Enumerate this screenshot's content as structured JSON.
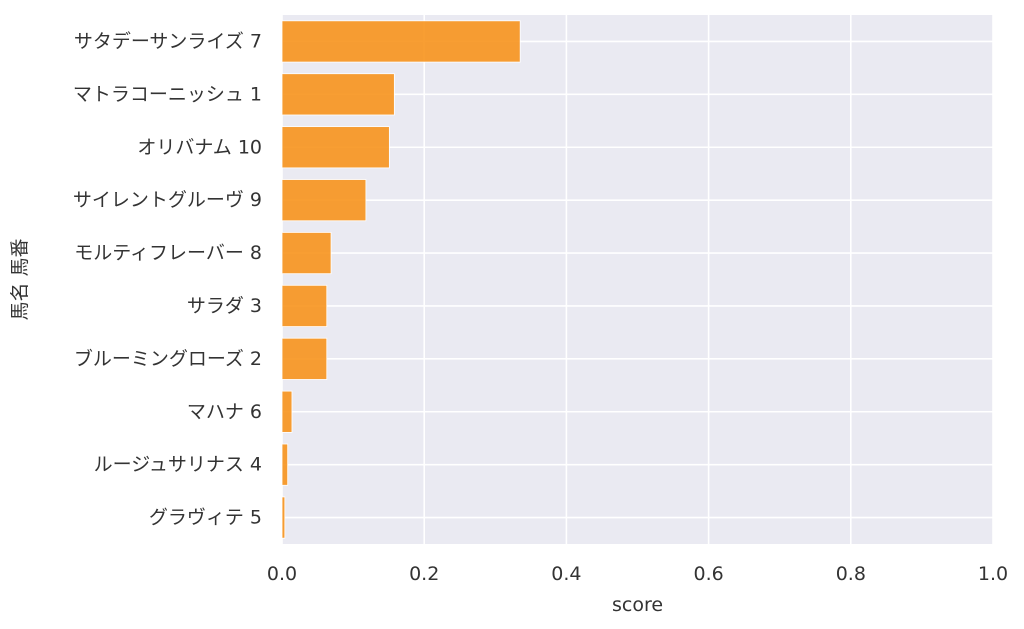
{
  "chart_data": {
    "type": "bar",
    "orientation": "horizontal",
    "categories": [
      "サタデーサンライズ 7",
      "マトラコーニッシュ 1",
      "オリバナム 10",
      "サイレントグルーヴ 9",
      "モルティフレーバー 8",
      "サラダ 3",
      "ブルーミングローズ 2",
      "マハナ 6",
      "ルージュサリナス 4",
      "グラヴィテ 5"
    ],
    "values": [
      0.335,
      0.158,
      0.151,
      0.118,
      0.069,
      0.063,
      0.063,
      0.014,
      0.008,
      0.004
    ],
    "xlabel": "score",
    "ylabel": "馬名 馬番",
    "xlim": [
      0,
      1.0
    ],
    "xticks": [
      "0.0",
      "0.2",
      "0.4",
      "0.6",
      "0.8",
      "1.0"
    ],
    "grid": true,
    "colors": {
      "bar": "#f7941d",
      "background": "#eaeaf2",
      "grid": "#ffffff"
    }
  }
}
